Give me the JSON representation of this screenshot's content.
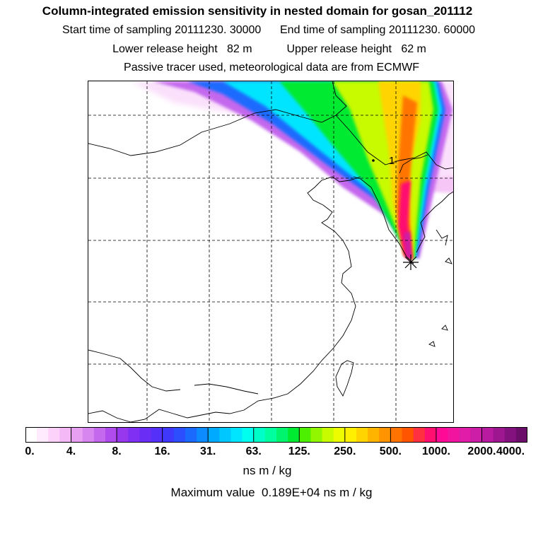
{
  "header": {
    "title": "Column-integrated emission sensitivity in nested domain for gosan_201112",
    "sampling_line": "Start time of sampling 20111230. 30000      End time of sampling 20111230. 60000",
    "release_line": "Lower release height   82 m           Upper release height   62 m",
    "tracer_line": "Passive tracer used, meteorological data are from ECMWF"
  },
  "map": {
    "release_site_marker": "asterisk-marker",
    "contour_label": "1"
  },
  "colorbar": {
    "tick_labels": [
      "0.",
      "4.",
      "8.",
      "16.",
      "31.",
      "63.",
      "125.",
      "250.",
      "500.",
      "1000.",
      "2000.",
      "4000."
    ],
    "colors": [
      "#ffffff",
      "#ffeafe",
      "#fcd2fb",
      "#f4b8f6",
      "#e7a0f2",
      "#d785ef",
      "#c468ee",
      "#b04ced",
      "#9738ef",
      "#7f30f2",
      "#6a2df5",
      "#5530f8",
      "#3f38fb",
      "#2c4efd",
      "#1b6afe",
      "#0c8bff",
      "#00aaff",
      "#00c8ff",
      "#00e5ff",
      "#00ffee",
      "#00ffc8",
      "#00ff9e",
      "#00f46e",
      "#00ea32",
      "#4cf000",
      "#92f600",
      "#c8fa00",
      "#eefc00",
      "#fff000",
      "#ffd400",
      "#ffb400",
      "#ff9400",
      "#ff7400",
      "#ff5400",
      "#ff3040",
      "#ff1070",
      "#ff0a96",
      "#f0149e",
      "#e01ca8",
      "#cc1ea6",
      "#b81aa0",
      "#9e1690",
      "#84127e",
      "#6a0e6a"
    ],
    "units": "ns m / kg"
  },
  "footer": {
    "max_value": "Maximum value  0.189E+04 ns m / kg"
  }
}
